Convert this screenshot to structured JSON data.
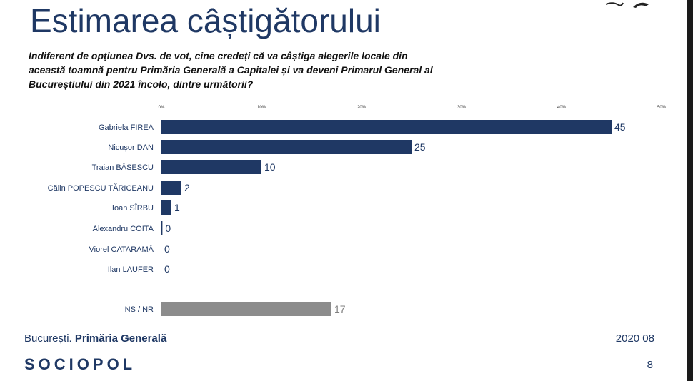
{
  "title": "Estimarea câștigătorului",
  "question": "Indiferent de opțiunea Dvs. de vot, cine credeți că va câștiga alegerile locale din această toamnă pentru Primăria Generală a Capitalei și va deveni Primarul General al Bucureștiului din 2021 încolo, dintre următorii?",
  "colors": {
    "bar": "#1f3864",
    "bar_other": "#8c8c8c",
    "text": "#1f3864"
  },
  "chart_data": {
    "type": "bar",
    "orientation": "horizontal",
    "xlim": [
      0,
      50
    ],
    "x_ticks": [
      "0%",
      "10%",
      "20%",
      "30%",
      "40%",
      "50%"
    ],
    "categories": [
      "Gabriela FIREA",
      "Nicușor DAN",
      "Traian BĂSESCU",
      "Călin POPESCU TĂRICEANU",
      "Ioan SÎRBU",
      "Alexandru COITA",
      "Viorel CATARAMĂ",
      "Ilan LAUFER",
      "NS / NR"
    ],
    "values": [
      45,
      25,
      10,
      2,
      1,
      0.1,
      0,
      0,
      17
    ],
    "value_labels": [
      "45",
      "25",
      "10",
      "2",
      "1",
      "0",
      "0",
      "0",
      "17"
    ],
    "grid": false,
    "legend": "none"
  },
  "footer": {
    "location": "București.",
    "location_bold": "Primăria Generală",
    "date": "2020 08",
    "brand": "SOCIOPOL",
    "page": "8"
  }
}
